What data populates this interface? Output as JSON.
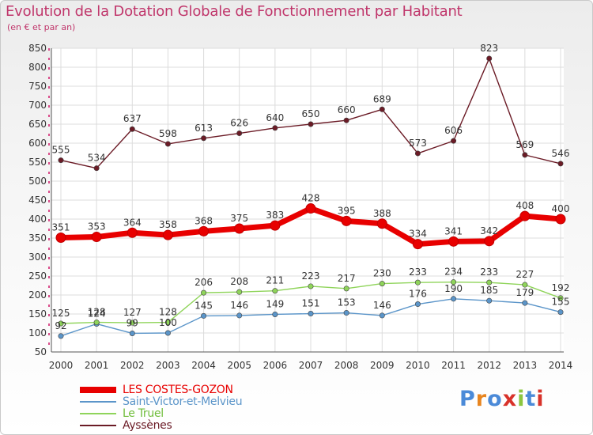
{
  "title": "Evolution de la Dotation Globale de Fonctionnement par Habitant",
  "subtitle": "(en € et par an)",
  "logo": {
    "text": "Proxiti",
    "colors": [
      "#4b8ad8",
      "#e8851f",
      "#4b8ad8",
      "#d8322a",
      "#8bc63f",
      "#4b8ad8",
      "#d8322a"
    ]
  },
  "chart_data": {
    "type": "line",
    "x": [
      2000,
      2001,
      2002,
      2003,
      2004,
      2005,
      2006,
      2007,
      2008,
      2009,
      2010,
      2011,
      2012,
      2013,
      2014
    ],
    "ylim": [
      50,
      850
    ],
    "yticks": [
      50,
      100,
      150,
      200,
      250,
      300,
      350,
      400,
      450,
      500,
      550,
      600,
      650,
      700,
      750,
      800,
      850
    ],
    "grid": true,
    "series": [
      {
        "name": "LES COSTES-GOZON",
        "color": "#e80000",
        "values": [
          351,
          353,
          364,
          358,
          368,
          375,
          383,
          428,
          395,
          388,
          334,
          341,
          342,
          408,
          400
        ]
      },
      {
        "name": "Saint-Victor-et-Melvieu",
        "color": "#5b95c9",
        "values": [
          92,
          124,
          99,
          100,
          145,
          146,
          149,
          151,
          153,
          146,
          176,
          190,
          185,
          179,
          155
        ]
      },
      {
        "name": "Le Truel",
        "color": "#8fd45a",
        "values": [
          125,
          128,
          127,
          128,
          206,
          208,
          211,
          223,
          217,
          230,
          233,
          234,
          233,
          227,
          192
        ]
      },
      {
        "name": "Ayssènes",
        "color": "#6b1b26",
        "values": [
          555,
          534,
          637,
          598,
          613,
          626,
          640,
          650,
          660,
          689,
          573,
          606,
          823,
          569,
          546
        ]
      }
    ]
  }
}
